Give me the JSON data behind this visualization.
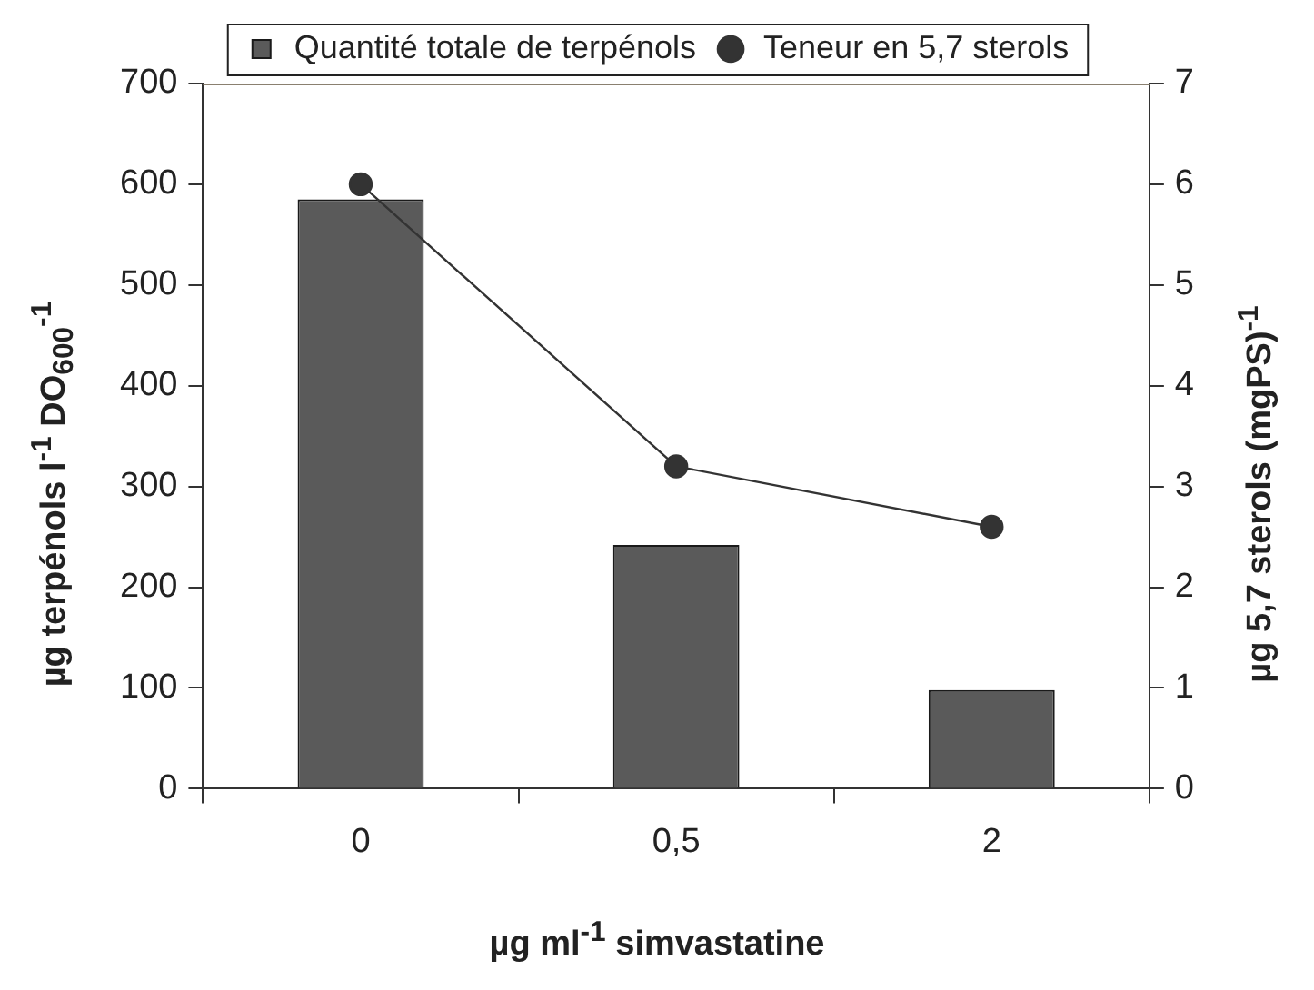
{
  "chart_data": {
    "type": "bar",
    "categories": [
      "0",
      "0,5",
      "2"
    ],
    "xlabel": "µg ml$^{-1}$  simvastatine",
    "ylabel": "µg terpénols l$^{-1}$ DO$_{600}$$^{-1}$",
    "y2label": "µg 5,7 sterols (mgPS)$^{-1}$",
    "series": [
      {
        "name": "Quantité totale de terpénols",
        "color": "#5a5a5a",
        "values": [
          585,
          242,
          98
        ]
      },
      {
        "name": "Teneur en 5,7 sterols",
        "type": "line",
        "axis": "y2",
        "color": "#333333",
        "marker": "circle",
        "values": [
          6.0,
          3.2,
          2.6
        ]
      }
    ],
    "ylim": [
      0,
      700
    ],
    "yticks": [
      0,
      100,
      200,
      300,
      400,
      500,
      600,
      700
    ],
    "y2lim": [
      0,
      7
    ],
    "y2ticks": [
      0,
      1,
      2,
      3,
      4,
      5,
      6,
      7
    ],
    "grid": false,
    "legend": "top"
  }
}
